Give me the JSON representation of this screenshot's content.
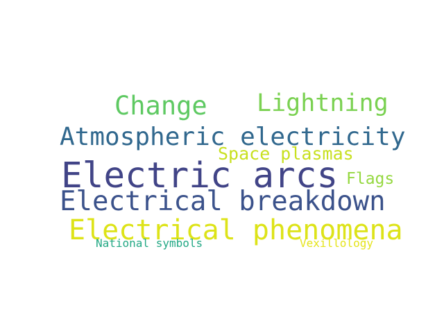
{
  "words": [
    {
      "id": "change",
      "text": "Change",
      "color": "#5ec962"
    },
    {
      "id": "lightning",
      "text": "Lightning",
      "color": "#7ad151"
    },
    {
      "id": "atmospheric_electricity",
      "text": "Atmospheric electricity",
      "color": "#31688e"
    },
    {
      "id": "space_plasmas",
      "text": "Space plasmas",
      "color": "#c8e020"
    },
    {
      "id": "electric_arcs",
      "text": "Electric arcs",
      "color": "#414487"
    },
    {
      "id": "flags",
      "text": "Flags",
      "color": "#95d840"
    },
    {
      "id": "electrical_breakdown",
      "text": "Electrical breakdown",
      "color": "#3b528b"
    },
    {
      "id": "electrical_phenomena",
      "text": "Electrical phenomena",
      "color": "#dde318"
    },
    {
      "id": "national_symbols",
      "text": "National symbols",
      "color": "#22a884"
    },
    {
      "id": "vexillology",
      "text": "Vexillology",
      "color": "#e5e419"
    }
  ]
}
